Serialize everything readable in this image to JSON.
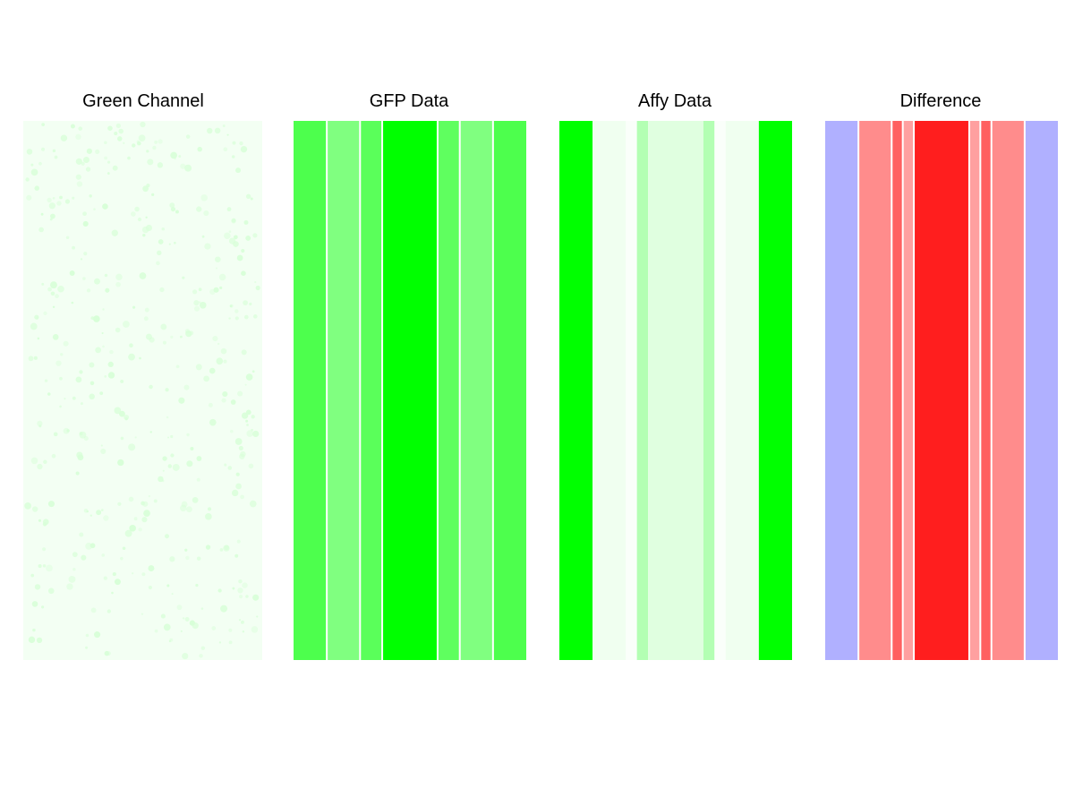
{
  "chart_data": {
    "type": "heatmap",
    "total_units": 21,
    "panels": [
      {
        "title": "Green Channel",
        "kind": "image",
        "base_color": "#f3fff3",
        "spot_color": "#d8ffd8"
      },
      {
        "title": "GFP Data",
        "kind": "bands",
        "separators": true,
        "bands": [
          {
            "span": 3,
            "color": "#4dff4d"
          },
          {
            "span": 3,
            "color": "#80ff80"
          },
          {
            "span": 2,
            "color": "#5aff5a"
          },
          {
            "span": 5,
            "color": "#00ff00"
          },
          {
            "span": 2,
            "color": "#5fff5f"
          },
          {
            "span": 3,
            "color": "#80ff80"
          },
          {
            "span": 3,
            "color": "#4dff4d"
          }
        ]
      },
      {
        "title": "Affy Data",
        "kind": "bands",
        "separators": false,
        "bands": [
          {
            "span": 3,
            "color": "#00ff00"
          },
          {
            "span": 3,
            "color": "#f0fff0"
          },
          {
            "span": 1,
            "color": "#fafffa"
          },
          {
            "span": 1,
            "color": "#b3ffb3"
          },
          {
            "span": 5,
            "color": "#e0ffe0"
          },
          {
            "span": 1,
            "color": "#b3ffb3"
          },
          {
            "span": 1,
            "color": "#fafffa"
          },
          {
            "span": 3,
            "color": "#f0fff0"
          },
          {
            "span": 3,
            "color": "#00ff00"
          }
        ]
      },
      {
        "title": "Difference",
        "kind": "bands",
        "separators": true,
        "bands": [
          {
            "span": 3,
            "color": "#b0b0ff"
          },
          {
            "span": 3,
            "color": "#ff8c8c"
          },
          {
            "span": 1,
            "color": "#ff6060"
          },
          {
            "span": 1,
            "color": "#ffa0a0"
          },
          {
            "span": 5,
            "color": "#ff1e1e"
          },
          {
            "span": 1,
            "color": "#ffa0a0"
          },
          {
            "span": 1,
            "color": "#ff6060"
          },
          {
            "span": 3,
            "color": "#ff8c8c"
          },
          {
            "span": 3,
            "color": "#b0b0ff"
          }
        ]
      }
    ]
  }
}
